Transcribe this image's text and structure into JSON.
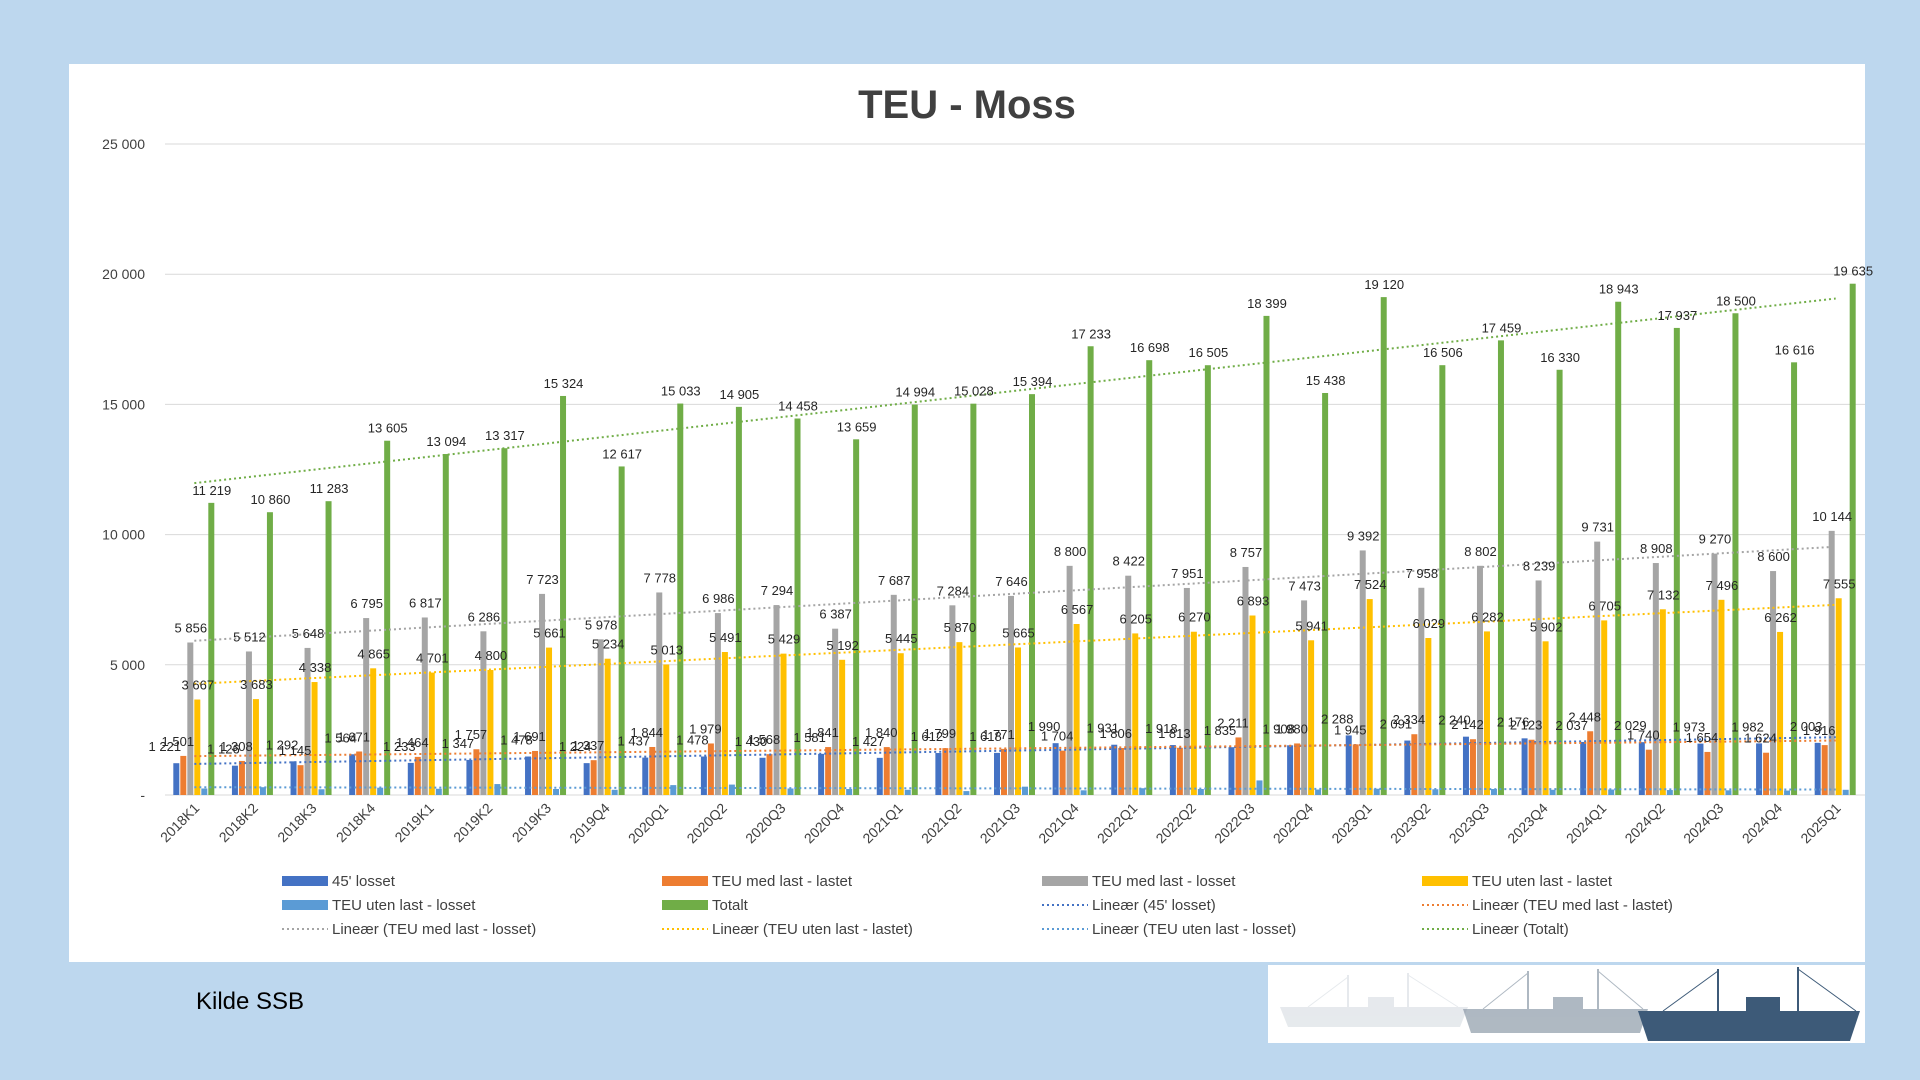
{
  "source": "Kilde SSB",
  "chart_data": {
    "type": "bar",
    "title": "TEU - Moss",
    "xlabel": "",
    "ylabel": "",
    "ylim": [
      0,
      25000
    ],
    "yticks": [
      0,
      5000,
      10000,
      15000,
      20000,
      25000
    ],
    "ytick_labels": [
      "-",
      "5 000",
      "10 000",
      "15 000",
      "20 000",
      "25 000"
    ],
    "grid": true,
    "legend_position": "bottom",
    "categories": [
      "2018K1",
      "2018K2",
      "2018K3",
      "2018K4",
      "2019K1",
      "2019K2",
      "2019K3",
      "2019Q4",
      "2020Q1",
      "2020Q2",
      "2020Q3",
      "2020Q4",
      "2021Q1",
      "2021Q2",
      "2021Q3",
      "2021Q4",
      "2022Q1",
      "2022Q2",
      "2022Q3",
      "2022Q4",
      "2023Q1",
      "2023Q2",
      "2023Q3",
      "2023Q4",
      "2024Q1",
      "2024Q2",
      "2024Q3",
      "2024Q4",
      "2025Q1"
    ],
    "series": [
      {
        "name": "45' losset",
        "color": "#4472c4",
        "values": [
          1221,
          1126,
          1292,
          1564,
          1233,
          1347,
          1478,
          1224,
          1437,
          1478,
          1430,
          1581,
          1427,
          1612,
          1618,
          1990,
          1931,
          1918,
          1835,
          1908,
          2288,
          2091,
          2240,
          2176,
          2037,
          2029,
          1973,
          1982,
          2003
        ]
      },
      {
        "name": "TEU med last - lastet",
        "color": "#ed7d31",
        "values": [
          1501,
          1308,
          1145,
          1671,
          1464,
          1757,
          1691,
          1337,
          1844,
          1979,
          1568,
          1841,
          1840,
          1799,
          1771,
          1704,
          1806,
          1813,
          2211,
          1980,
          1945,
          2334,
          2142,
          2123,
          2448,
          1740,
          1654,
          1624,
          1916
        ]
      },
      {
        "name": "TEU med last - losset",
        "color": "#a5a5a5",
        "values": [
          5856,
          5512,
          5648,
          6795,
          6817,
          6286,
          7723,
          5978,
          7778,
          6986,
          7294,
          6387,
          7687,
          7284,
          7646,
          8800,
          8422,
          7951,
          8757,
          7473,
          9392,
          7958,
          8802,
          8239,
          9731,
          8908,
          9270,
          8600,
          10144
        ]
      },
      {
        "name": "TEU uten last - lastet",
        "color": "#ffc000",
        "values": [
          3667,
          3683,
          4338,
          4865,
          4701,
          4800,
          5661,
          5234,
          5013,
          5491,
          5429,
          5192,
          5445,
          5870,
          5665,
          6567,
          6205,
          6270,
          6893,
          5941,
          7524,
          6029,
          6282,
          5902,
          6705,
          7132,
          7496,
          6262,
          7555
        ]
      },
      {
        "name": "TEU uten last - losset",
        "color": "#5b9bd5",
        "values": [
          250,
          300,
          220,
          280,
          240,
          420,
          230,
          200,
          380,
          400,
          250,
          230,
          200,
          150,
          320,
          180,
          260,
          230,
          560,
          210,
          240,
          220,
          230,
          200,
          210,
          190,
          180,
          170,
          200
        ]
      },
      {
        "name": "Totalt",
        "color": "#70ad47",
        "values": [
          11219,
          10860,
          11283,
          13605,
          13094,
          13317,
          15324,
          12617,
          15033,
          14905,
          14458,
          13659,
          14994,
          15028,
          15394,
          17233,
          16698,
          16505,
          18399,
          15438,
          19120,
          16506,
          17459,
          16330,
          18943,
          17937,
          18500,
          16616,
          19635
        ]
      }
    ],
    "data_labels": {
      "45' losset": [
        "1 221",
        "1 126",
        "1 292",
        "1 564",
        "1 233",
        "1 347",
        "1 478",
        "1 224",
        "1 437",
        "1 478",
        "1 430",
        "1 581",
        "1 427",
        "1 612",
        "1 618",
        "1 990",
        "1 931",
        "1 918",
        "1 835",
        "1 908",
        "2 288",
        "2 091",
        "2 240",
        "2 176",
        "2 037",
        "2 029",
        "1 973",
        "1 982",
        "2 003"
      ],
      "TEU med last - lastet": [
        "1 501",
        "1 308",
        "1 145",
        "1 671",
        "1 464",
        "1 757",
        "1 691",
        "1 337",
        "1 844",
        "1 979",
        "1 568",
        "1 841",
        "1 840",
        "1 799",
        "1 771",
        "1 704",
        "1 806",
        "1 813",
        "2 211",
        "1 980",
        "1 945",
        "2 334",
        "2 142",
        "2 123",
        "2 448",
        "1 740",
        "1 654",
        "1 624",
        "1 916"
      ],
      "TEU med last - losset": [
        "5 856",
        "5 512",
        "5 648",
        "6 795",
        "6 817",
        "6 286",
        "7 723",
        "5 978",
        "7 778",
        "6 986",
        "7 294",
        "6 387",
        "7 687",
        "7 284",
        "7 646",
        "8 800",
        "8 422",
        "7 951",
        "8 757",
        "7 473",
        "9 392",
        "7 958",
        "8 802",
        "8 239",
        "9 731",
        "8 908",
        "9 270",
        "8 600",
        "10 144"
      ],
      "TEU uten last - lastet": [
        "3 667",
        "3 683",
        "4 338",
        "4 865",
        "4 701",
        "4 800",
        "5 661",
        "5 234",
        "5 013",
        "5 491",
        "5 429",
        "5 192",
        "5 445",
        "5 870",
        "5 665",
        "6 567",
        "6 205",
        "6 270",
        "6 893",
        "5 941",
        "7 524",
        "6 029",
        "6 282",
        "5 902",
        "6 705",
        "7 132",
        "7 496",
        "6 262",
        "7 555"
      ],
      "Totalt": [
        "11 219",
        "10 860",
        "11 283",
        "13 605",
        "13 094",
        "13 317",
        "15 324",
        "12 617",
        "15 033",
        "14 905",
        "14 458",
        "13 659",
        "14 994",
        "15 028",
        "15 394",
        "17 233",
        "16 698",
        "16 505",
        "18 399",
        "15 438",
        "19 120",
        "16 506",
        "17 459",
        "16 330",
        "18 943",
        "17 937",
        "18 500",
        "16 616",
        "19 635"
      ]
    },
    "trendlines": [
      {
        "name": "Lineær (45' losset)",
        "color": "#4472c4",
        "series": "45' losset"
      },
      {
        "name": "Lineær (TEU med last - lastet)",
        "color": "#ed7d31",
        "series": "TEU med last - lastet"
      },
      {
        "name": "Lineær (TEU med last - losset)",
        "color": "#a5a5a5",
        "series": "TEU med last - losset"
      },
      {
        "name": "Lineær (TEU uten last - lastet)",
        "color": "#ffc000",
        "series": "TEU uten last - lastet"
      },
      {
        "name": "Lineær (TEU uten last - losset)",
        "color": "#5b9bd5",
        "series": "TEU uten last - losset"
      },
      {
        "name": "Lineær (Totalt)",
        "color": "#70ad47",
        "series": "Totalt"
      }
    ],
    "legend_entries": [
      "45' losset",
      "TEU med last - lastet",
      "TEU med last - losset",
      "TEU uten last - lastet",
      "TEU uten last - losset",
      "Totalt",
      "Lineær (45' losset)",
      "Lineær (TEU med last - lastet)",
      "Lineær (TEU med last - losset)",
      "Lineær (TEU uten last - lastet)",
      "Lineær (TEU uten last - losset)",
      "Lineær (Totalt)"
    ]
  }
}
